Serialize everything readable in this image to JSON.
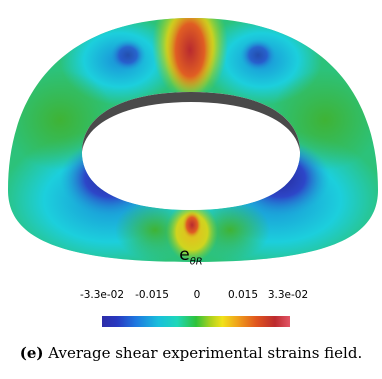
{
  "legend": {
    "symbol": "e",
    "subscript": "θR",
    "ticks": [
      "-3.3e-02",
      "-0.015",
      "0",
      "0.015",
      "3.3e-02"
    ],
    "colors": [
      "#2e2da8",
      "#19bfdc",
      "#2ec23a",
      "#f1e21a",
      "#bc2b2e"
    ]
  },
  "caption": {
    "tag": "(e)",
    "text": "Average shear experimental strains field."
  }
}
